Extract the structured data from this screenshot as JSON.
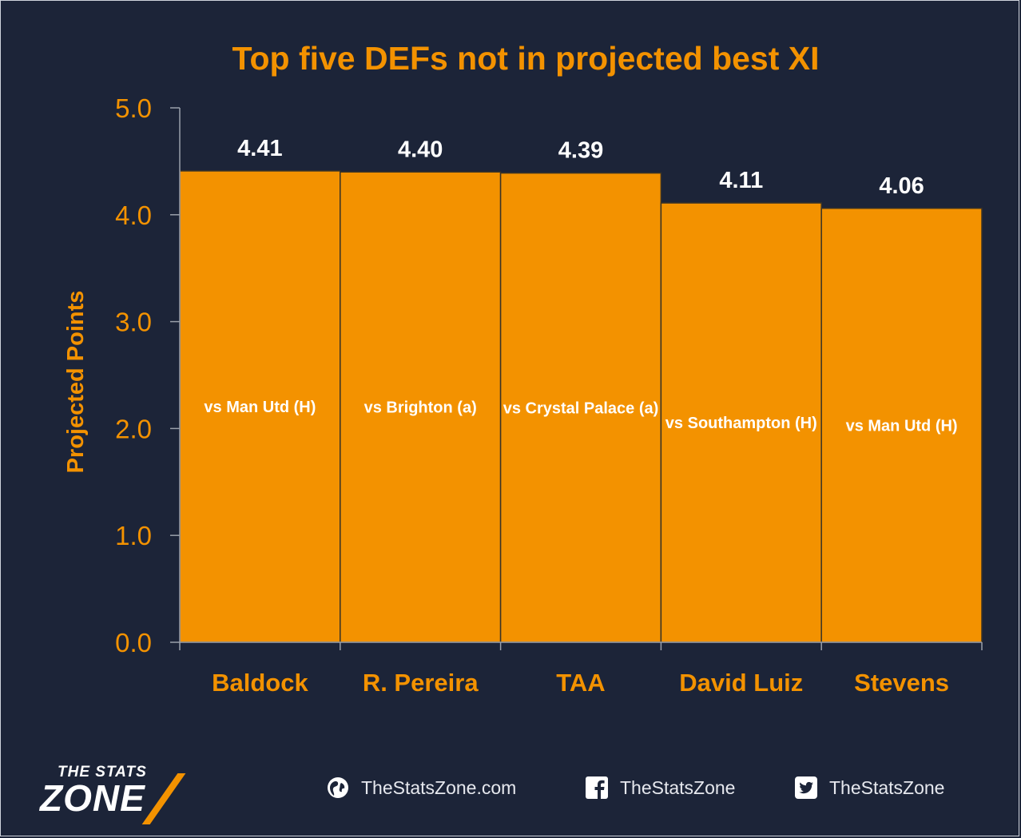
{
  "chart_data": {
    "type": "bar",
    "title": "Top five DEFs not in projected best XI",
    "ylabel": "Projected Points",
    "ylim": [
      0,
      5
    ],
    "yticks": [
      "0.0",
      "1.0",
      "2.0",
      "3.0",
      "4.0",
      "5.0"
    ],
    "categories": [
      "Baldock",
      "R. Pereira",
      "TAA",
      "David Luiz",
      "Stevens"
    ],
    "values": [
      4.41,
      4.4,
      4.39,
      4.11,
      4.06
    ],
    "value_labels": [
      "4.41",
      "4.40",
      "4.39",
      "4.11",
      "4.06"
    ],
    "bar_labels": [
      "vs Man Utd (H)",
      "vs Brighton (a)",
      "vs Crystal Palace (a)",
      "vs Southampton (H)",
      "vs Man Utd (H)"
    ],
    "grid": false,
    "colors": {
      "bar": "#f39200",
      "background": "#1c2438",
      "text": "#f39200",
      "value_label": "#ffffff"
    }
  },
  "footer": {
    "logo_top": "THE STATS",
    "logo_main": "ZONE",
    "website": "TheStatsZone.com",
    "facebook": "TheStatsZone",
    "twitter": "TheStatsZone"
  }
}
